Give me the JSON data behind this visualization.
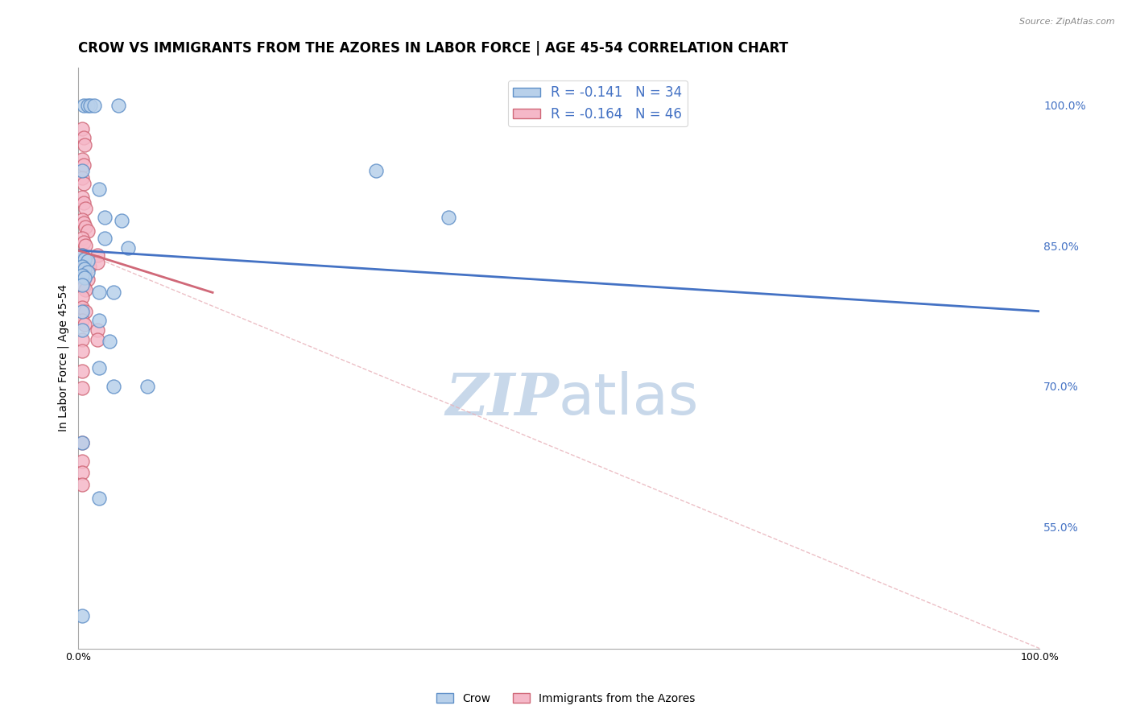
{
  "title": "CROW VS IMMIGRANTS FROM THE AZORES IN LABOR FORCE | AGE 45-54 CORRELATION CHART",
  "source": "Source: ZipAtlas.com",
  "ylabel": "In Labor Force | Age 45-54",
  "legend_labels": [
    "Crow",
    "Immigrants from the Azores"
  ],
  "crow_r": -0.141,
  "crow_n": 34,
  "azores_r": -0.164,
  "azores_n": 46,
  "xmin": 0.0,
  "xmax": 1.0,
  "ymin": 0.42,
  "ymax": 1.04,
  "right_yticks": [
    0.55,
    0.7,
    0.85,
    1.0
  ],
  "right_yticklabels": [
    "55.0%",
    "70.0%",
    "85.0%",
    "100.0%"
  ],
  "xticks": [
    0.0,
    0.1,
    0.2,
    0.3,
    0.4,
    0.5,
    0.6,
    0.7,
    0.8,
    0.9,
    1.0
  ],
  "xticklabels": [
    "0.0%",
    "",
    "",
    "",
    "",
    "",
    "",
    "",
    "",
    "",
    "100.0%"
  ],
  "crow_color": "#b8d0ea",
  "azores_color": "#f5b8c8",
  "crow_edge_color": "#6090c8",
  "azores_edge_color": "#d06878",
  "crow_line_color": "#4472c4",
  "azores_line_color": "#d06878",
  "crow_points": [
    [
      0.006,
      1.0
    ],
    [
      0.01,
      1.0
    ],
    [
      0.013,
      1.0
    ],
    [
      0.017,
      1.0
    ],
    [
      0.042,
      1.0
    ],
    [
      0.004,
      0.93
    ],
    [
      0.022,
      0.91
    ],
    [
      0.028,
      0.88
    ],
    [
      0.045,
      0.877
    ],
    [
      0.028,
      0.858
    ],
    [
      0.052,
      0.848
    ],
    [
      0.31,
      0.93
    ],
    [
      0.385,
      0.88
    ],
    [
      0.004,
      0.84
    ],
    [
      0.007,
      0.836
    ],
    [
      0.01,
      0.834
    ],
    [
      0.004,
      0.828
    ],
    [
      0.007,
      0.825
    ],
    [
      0.01,
      0.822
    ],
    [
      0.004,
      0.818
    ],
    [
      0.007,
      0.816
    ],
    [
      0.004,
      0.808
    ],
    [
      0.022,
      0.8
    ],
    [
      0.037,
      0.8
    ],
    [
      0.004,
      0.78
    ],
    [
      0.022,
      0.77
    ],
    [
      0.004,
      0.76
    ],
    [
      0.033,
      0.748
    ],
    [
      0.022,
      0.72
    ],
    [
      0.037,
      0.7
    ],
    [
      0.072,
      0.7
    ],
    [
      0.004,
      0.64
    ],
    [
      0.022,
      0.58
    ],
    [
      0.004,
      0.455
    ]
  ],
  "azores_points": [
    [
      0.004,
      0.975
    ],
    [
      0.006,
      0.965
    ],
    [
      0.007,
      0.958
    ],
    [
      0.004,
      0.942
    ],
    [
      0.006,
      0.936
    ],
    [
      0.004,
      0.922
    ],
    [
      0.006,
      0.916
    ],
    [
      0.004,
      0.902
    ],
    [
      0.006,
      0.896
    ],
    [
      0.008,
      0.89
    ],
    [
      0.004,
      0.878
    ],
    [
      0.006,
      0.874
    ],
    [
      0.008,
      0.87
    ],
    [
      0.01,
      0.866
    ],
    [
      0.004,
      0.858
    ],
    [
      0.006,
      0.854
    ],
    [
      0.008,
      0.85
    ],
    [
      0.004,
      0.84
    ],
    [
      0.006,
      0.836
    ],
    [
      0.008,
      0.833
    ],
    [
      0.01,
      0.83
    ],
    [
      0.012,
      0.828
    ],
    [
      0.004,
      0.824
    ],
    [
      0.006,
      0.82
    ],
    [
      0.008,
      0.817
    ],
    [
      0.01,
      0.814
    ],
    [
      0.004,
      0.81
    ],
    [
      0.006,
      0.806
    ],
    [
      0.008,
      0.803
    ],
    [
      0.004,
      0.795
    ],
    [
      0.004,
      0.784
    ],
    [
      0.008,
      0.78
    ],
    [
      0.004,
      0.77
    ],
    [
      0.007,
      0.766
    ],
    [
      0.004,
      0.75
    ],
    [
      0.004,
      0.738
    ],
    [
      0.004,
      0.716
    ],
    [
      0.004,
      0.698
    ],
    [
      0.02,
      0.84
    ],
    [
      0.02,
      0.832
    ],
    [
      0.004,
      0.64
    ],
    [
      0.004,
      0.62
    ],
    [
      0.004,
      0.608
    ],
    [
      0.004,
      0.595
    ],
    [
      0.02,
      0.76
    ],
    [
      0.02,
      0.75
    ]
  ],
  "background_color": "#ffffff",
  "grid_color": "#c8c8c8",
  "title_fontsize": 12,
  "axis_label_fontsize": 10,
  "tick_fontsize": 9,
  "watermark_zip": "ZIP",
  "watermark_atlas": "atlas",
  "watermark_color": "#c8d8ea",
  "watermark_fontsize": 52,
  "diag_line_color": "#e8b0b8",
  "diag_line_start_y": 0.845,
  "diag_line_end_y": 0.42
}
